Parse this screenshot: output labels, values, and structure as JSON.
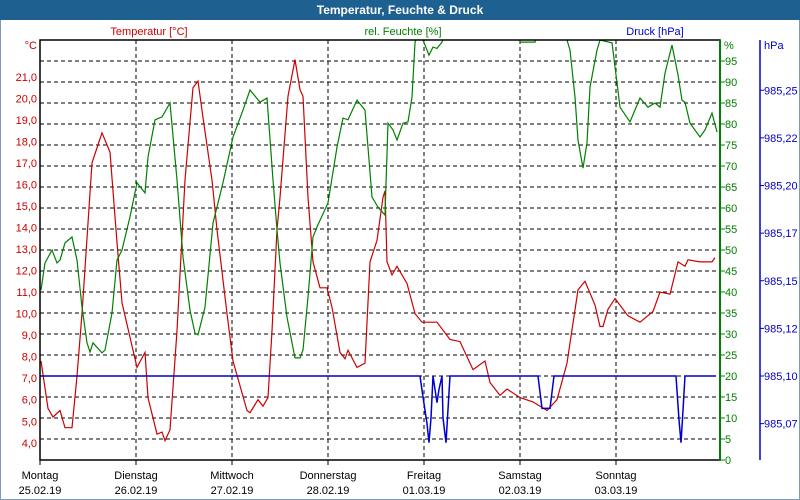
{
  "title": "Temperatur, Feuchte & Druck",
  "colors": {
    "temperature": "#cc0000",
    "humidity": "#008000",
    "pressure": "#0000cc",
    "grid": "#000000",
    "titlebar": "#1e6090"
  },
  "chart_data": {
    "type": "line",
    "title": "Temperatur, Feuchte & Druck",
    "x_unit": "hours since 25.02.19 00:00",
    "xlim": [
      0,
      170
    ],
    "days": [
      {
        "name": "Montag",
        "date": "25.02.19",
        "hour": 0
      },
      {
        "name": "Dienstag",
        "date": "26.02.19",
        "hour": 24
      },
      {
        "name": "Mittwoch",
        "date": "27.02.19",
        "hour": 48
      },
      {
        "name": "Donnerstag",
        "date": "28.02.19",
        "hour": 72
      },
      {
        "name": "Freitag",
        "date": "01.03.19",
        "hour": 96
      },
      {
        "name": "Samstag",
        "date": "02.03.19",
        "hour": 120
      },
      {
        "name": "Sonntag",
        "date": "03.03.19",
        "hour": 144
      }
    ],
    "axes": {
      "temperature": {
        "label": "Temperatur [°C]",
        "unit": "°C",
        "ticks": [
          4,
          5,
          6,
          7,
          8,
          9,
          10,
          11,
          12,
          13,
          14,
          15,
          16,
          17,
          18,
          19,
          20,
          21
        ],
        "tick_labels": [
          "4,0",
          "5,0",
          "6,0",
          "7,0",
          "8,0",
          "9,0",
          "10,0",
          "11,0",
          "12,0",
          "13,0",
          "14,0",
          "15,0",
          "16,0",
          "17,0",
          "18,0",
          "19,0",
          "20,0",
          "21,0"
        ]
      },
      "humidity": {
        "label": "rel. Feuchte [%]",
        "unit": "%",
        "ylim": [
          0,
          100
        ],
        "ticks": [
          0,
          5,
          10,
          15,
          20,
          25,
          30,
          35,
          40,
          45,
          50,
          55,
          60,
          65,
          70,
          75,
          80,
          85,
          90,
          95
        ],
        "tick_labels": [
          "0",
          "5",
          "10",
          "15",
          "20",
          "25",
          "30",
          "35",
          "40",
          "45",
          "50",
          "55",
          "60",
          "65",
          "70",
          "75",
          "80",
          "85",
          "90",
          "95"
        ]
      },
      "pressure": {
        "label": "Druck [hPa]",
        "unit": "hPa",
        "ticks": [
          985.075,
          985.1,
          985.125,
          985.15,
          985.175,
          985.2,
          985.225,
          985.25
        ],
        "tick_labels": [
          "985,07",
          "985,10",
          "985,12",
          "985,15",
          "985,17",
          "985,20",
          "985,22",
          "985,25"
        ]
      }
    },
    "grid": true,
    "series": [
      {
        "name": "Temperatur",
        "axis": "temperature",
        "points": [
          [
            0.25,
            7.8
          ],
          [
            2,
            5.6
          ],
          [
            3.25,
            5.2
          ],
          [
            5,
            5.5
          ],
          [
            6.25,
            4.7
          ],
          [
            8,
            4.7
          ],
          [
            9.25,
            7.1
          ],
          [
            10.5,
            10.0
          ],
          [
            13,
            17.0
          ],
          [
            15.5,
            18.4
          ],
          [
            17.5,
            17.5
          ],
          [
            19.25,
            13.3
          ],
          [
            20.5,
            10.5
          ],
          [
            24.25,
            7.5
          ],
          [
            26.25,
            8.2
          ],
          [
            27,
            6.1
          ],
          [
            29.25,
            4.4
          ],
          [
            30.5,
            4.5
          ],
          [
            31.25,
            4.1
          ],
          [
            32.5,
            4.6
          ],
          [
            34.25,
            9.2
          ],
          [
            36.25,
            16.2
          ],
          [
            38.25,
            20.5
          ],
          [
            39.5,
            20.8
          ],
          [
            40.75,
            19.1
          ],
          [
            43,
            16.2
          ],
          [
            44.25,
            13.9
          ],
          [
            46.75,
            10.0
          ],
          [
            48.25,
            7.8
          ],
          [
            51.75,
            5.5
          ],
          [
            52.5,
            5.4
          ],
          [
            54.5,
            6.0
          ],
          [
            55.75,
            5.7
          ],
          [
            57,
            6.1
          ],
          [
            58,
            9.2
          ],
          [
            59.25,
            13.9
          ],
          [
            60,
            15.4
          ],
          [
            62,
            20.1
          ],
          [
            63.75,
            21.8
          ],
          [
            65,
            20.4
          ],
          [
            65.75,
            20.1
          ],
          [
            67,
            15.4
          ],
          [
            68.25,
            12.4
          ],
          [
            70,
            11.2
          ],
          [
            71.75,
            11.2
          ],
          [
            73,
            10.3
          ],
          [
            75,
            8.2
          ],
          [
            76.25,
            7.9
          ],
          [
            77,
            8.3
          ],
          [
            79.25,
            7.5
          ],
          [
            81.25,
            7.7
          ],
          [
            82.5,
            12.4
          ],
          [
            84.25,
            13.4
          ],
          [
            85.75,
            15.4
          ],
          [
            86.25,
            15.7
          ],
          [
            86.75,
            12.4
          ],
          [
            88,
            11.8
          ],
          [
            89.25,
            12.2
          ],
          [
            91.75,
            11.4
          ],
          [
            93.75,
            10.0
          ],
          [
            95.5,
            9.6
          ],
          [
            99.25,
            9.6
          ],
          [
            102.5,
            8.8
          ],
          [
            105,
            8.7
          ],
          [
            108.25,
            7.4
          ],
          [
            111.25,
            7.8
          ],
          [
            112.5,
            6.8
          ],
          [
            115,
            6.2
          ],
          [
            116.75,
            6.5
          ],
          [
            120,
            6.1
          ],
          [
            123.25,
            5.9
          ],
          [
            126.75,
            5.5
          ],
          [
            129.25,
            6.0
          ],
          [
            131.75,
            7.7
          ],
          [
            134.5,
            11.1
          ],
          [
            136.25,
            11.5
          ],
          [
            138.75,
            10.4
          ],
          [
            140,
            9.4
          ],
          [
            140.75,
            9.4
          ],
          [
            142,
            10.2
          ],
          [
            143.75,
            10.7
          ],
          [
            147,
            9.9
          ],
          [
            150,
            9.6
          ],
          [
            153.25,
            10.1
          ],
          [
            155,
            11.0
          ],
          [
            157.5,
            10.9
          ],
          [
            159.5,
            12.4
          ],
          [
            161.25,
            12.2
          ],
          [
            162,
            12.5
          ],
          [
            165,
            12.4
          ],
          [
            168,
            12.4
          ],
          [
            168.75,
            12.6
          ]
        ]
      },
      {
        "name": "rel. Feuchte",
        "axis": "humidity",
        "points": [
          [
            0.25,
            40.5
          ],
          [
            1.25,
            46.9
          ],
          [
            3,
            50
          ],
          [
            4.25,
            46.9
          ],
          [
            5,
            47.6
          ],
          [
            6.25,
            51.7
          ],
          [
            8,
            53.1
          ],
          [
            9.25,
            47.6
          ],
          [
            10.5,
            36.4
          ],
          [
            11.75,
            27.9
          ],
          [
            12.5,
            25.7
          ],
          [
            13.25,
            27.9
          ],
          [
            15.5,
            25.5
          ],
          [
            16.25,
            26.2
          ],
          [
            18,
            35
          ],
          [
            19.25,
            47.6
          ],
          [
            20.5,
            50
          ],
          [
            22.5,
            57.9
          ],
          [
            24.25,
            66
          ],
          [
            26.25,
            63.6
          ],
          [
            27,
            72.1
          ],
          [
            28.75,
            81
          ],
          [
            30.5,
            81.7
          ],
          [
            32.5,
            85
          ],
          [
            34.25,
            66.7
          ],
          [
            35.75,
            48.3
          ],
          [
            37.5,
            35.7
          ],
          [
            38.75,
            30.2
          ],
          [
            39.5,
            29.8
          ],
          [
            41.25,
            36.4
          ],
          [
            43.25,
            56.4
          ],
          [
            45.75,
            66
          ],
          [
            48.25,
            76.9
          ],
          [
            50.75,
            83.3
          ],
          [
            52.5,
            88.1
          ],
          [
            55,
            85.2
          ],
          [
            56.75,
            86.2
          ],
          [
            58.25,
            66.7
          ],
          [
            59.25,
            54.8
          ],
          [
            60,
            46.9
          ],
          [
            61.75,
            34
          ],
          [
            63.75,
            24.3
          ],
          [
            65,
            24.3
          ],
          [
            65.75,
            26.2
          ],
          [
            67,
            38.8
          ],
          [
            68.25,
            53.1
          ],
          [
            69.25,
            55.5
          ],
          [
            72,
            61.2
          ],
          [
            74.25,
            74.5
          ],
          [
            75.75,
            81.4
          ],
          [
            77,
            81
          ],
          [
            79.25,
            85.7
          ],
          [
            81.25,
            83.3
          ],
          [
            83,
            62.6
          ],
          [
            84.5,
            60.2
          ],
          [
            86.25,
            58.3
          ],
          [
            87,
            80.2
          ],
          [
            88.25,
            78.6
          ],
          [
            89.25,
            76.2
          ],
          [
            90.75,
            80.2
          ],
          [
            92,
            80.5
          ],
          [
            93,
            86.4
          ],
          [
            93.75,
            99.3
          ],
          [
            94.5,
            102
          ],
          [
            95.75,
            100
          ],
          [
            97.25,
            96.4
          ],
          [
            98.25,
            98.3
          ],
          [
            99.25,
            98
          ],
          [
            100.5,
            99.5
          ],
          [
            101.5,
            102
          ],
          [
            119.5,
            102
          ],
          [
            120,
            99.5
          ],
          [
            123.75,
            99.5
          ],
          [
            124.5,
            102
          ],
          [
            131.25,
            102
          ],
          [
            131.75,
            100
          ],
          [
            132.5,
            97.6
          ],
          [
            133.75,
            86.4
          ],
          [
            134.5,
            76.2
          ],
          [
            135.75,
            69.5
          ],
          [
            136.75,
            75.5
          ],
          [
            137.5,
            88.8
          ],
          [
            139.25,
            97.6
          ],
          [
            140,
            100
          ],
          [
            143,
            99.3
          ],
          [
            144.25,
            89.8
          ],
          [
            145,
            84
          ],
          [
            147.5,
            80.5
          ],
          [
            150,
            86.2
          ],
          [
            152,
            84
          ],
          [
            153.75,
            85
          ],
          [
            155,
            84
          ],
          [
            156.25,
            92.1
          ],
          [
            158,
            98.8
          ],
          [
            159.5,
            91.7
          ],
          [
            160.5,
            85.7
          ],
          [
            161.25,
            85.2
          ],
          [
            162.5,
            80.2
          ],
          [
            165,
            76.9
          ],
          [
            166.25,
            78.6
          ],
          [
            168,
            82.6
          ],
          [
            169.25,
            78.1
          ]
        ]
      },
      {
        "name": "Druck",
        "axis": "pressure",
        "points": [
          [
            0,
            985.1
          ],
          [
            95,
            985.1
          ],
          [
            95.75,
            985.089
          ],
          [
            96.75,
            985.075
          ],
          [
            97.25,
            985.065
          ],
          [
            97.75,
            985.078
          ],
          [
            98.25,
            985.1
          ],
          [
            98.75,
            985.093
          ],
          [
            99.25,
            985.086
          ],
          [
            99.75,
            985.093
          ],
          [
            100.5,
            985.1
          ],
          [
            100.75,
            985.078
          ],
          [
            101.5,
            985.065
          ],
          [
            102.5,
            985.1
          ],
          [
            124.5,
            985.1
          ],
          [
            125.5,
            985.083
          ],
          [
            127.5,
            985.083
          ],
          [
            128.5,
            985.1
          ],
          [
            159,
            985.1
          ],
          [
            159.75,
            985.077
          ],
          [
            160.25,
            985.065
          ],
          [
            160.75,
            985.082
          ],
          [
            161.25,
            985.1
          ],
          [
            169,
            985.1
          ]
        ]
      }
    ]
  }
}
